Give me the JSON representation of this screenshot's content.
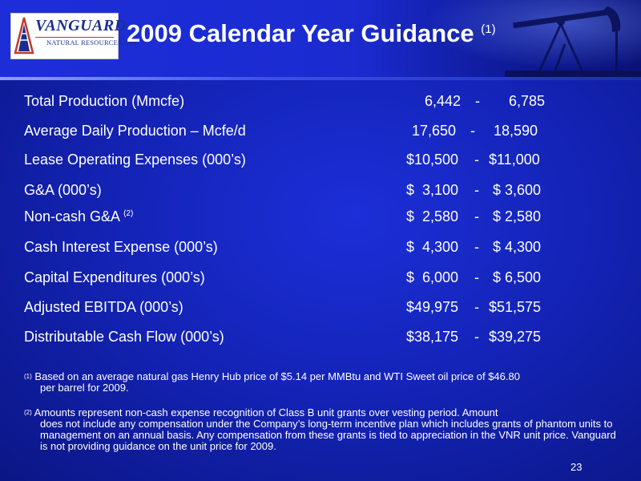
{
  "logo": {
    "name": "VANGUARD",
    "subtitle": "NATURAL RESOURCES, LLC"
  },
  "title": {
    "text": "2009 Calendar Year Guidance",
    "note": "(1)"
  },
  "rows": [
    {
      "label": "Total Production (Mmcfe)",
      "low": "6,442",
      "sep": "-",
      "high": "6,785"
    },
    {
      "label": "Average Daily Production – Mcfe/d",
      "low": "17,650",
      "sep": "-",
      "high": "18,590"
    },
    {
      "label": "Lease Operating Expenses (000’s)",
      "low": "$10,500",
      "sep": "-",
      "high": "$11,000"
    },
    {
      "label": "G&A (000’s)",
      "low": "$  3,100",
      "sep": "-",
      "high": "$ 3,600"
    },
    {
      "label": "Non-cash G&A",
      "note": "(2)",
      "low": "$  2,580",
      "sep": "-",
      "high": "$ 2,580"
    },
    {
      "label": "Cash Interest Expense (000’s)",
      "low": "$  4,300",
      "sep": "-",
      "high": "$ 4,300"
    },
    {
      "label": "Capital Expenditures (000’s)",
      "low": "$  6,000",
      "sep": "-",
      "high": "$ 6,500"
    },
    {
      "label": "Adjusted EBITDA (000’s)",
      "low": "$49,975",
      "sep": "-",
      "high": "$51,575"
    },
    {
      "label": "Distributable Cash Flow (000’s)",
      "low": "$38,175",
      "sep": "-",
      "high": "$39,275"
    }
  ],
  "footnotes": [
    {
      "mark": "(1)",
      "first": " Based on an average natural gas Henry Hub price of $5.14 per MMBtu and WTI Sweet oil price of $46.80",
      "rest": "per barrel for 2009."
    },
    {
      "mark": "(2)",
      "first": " Amounts represent non-cash expense recognition of Class B unit grants over vesting period. Amount",
      "rest": "does not include any compensation under the Company’s long-term incentive plan which includes grants of phantom units to management on an annual basis.  Any compensation from these grants is tied to appreciation in the VNR unit price. Vanguard is not providing guidance on the unit price for 2009."
    }
  ],
  "page_number": "23"
}
